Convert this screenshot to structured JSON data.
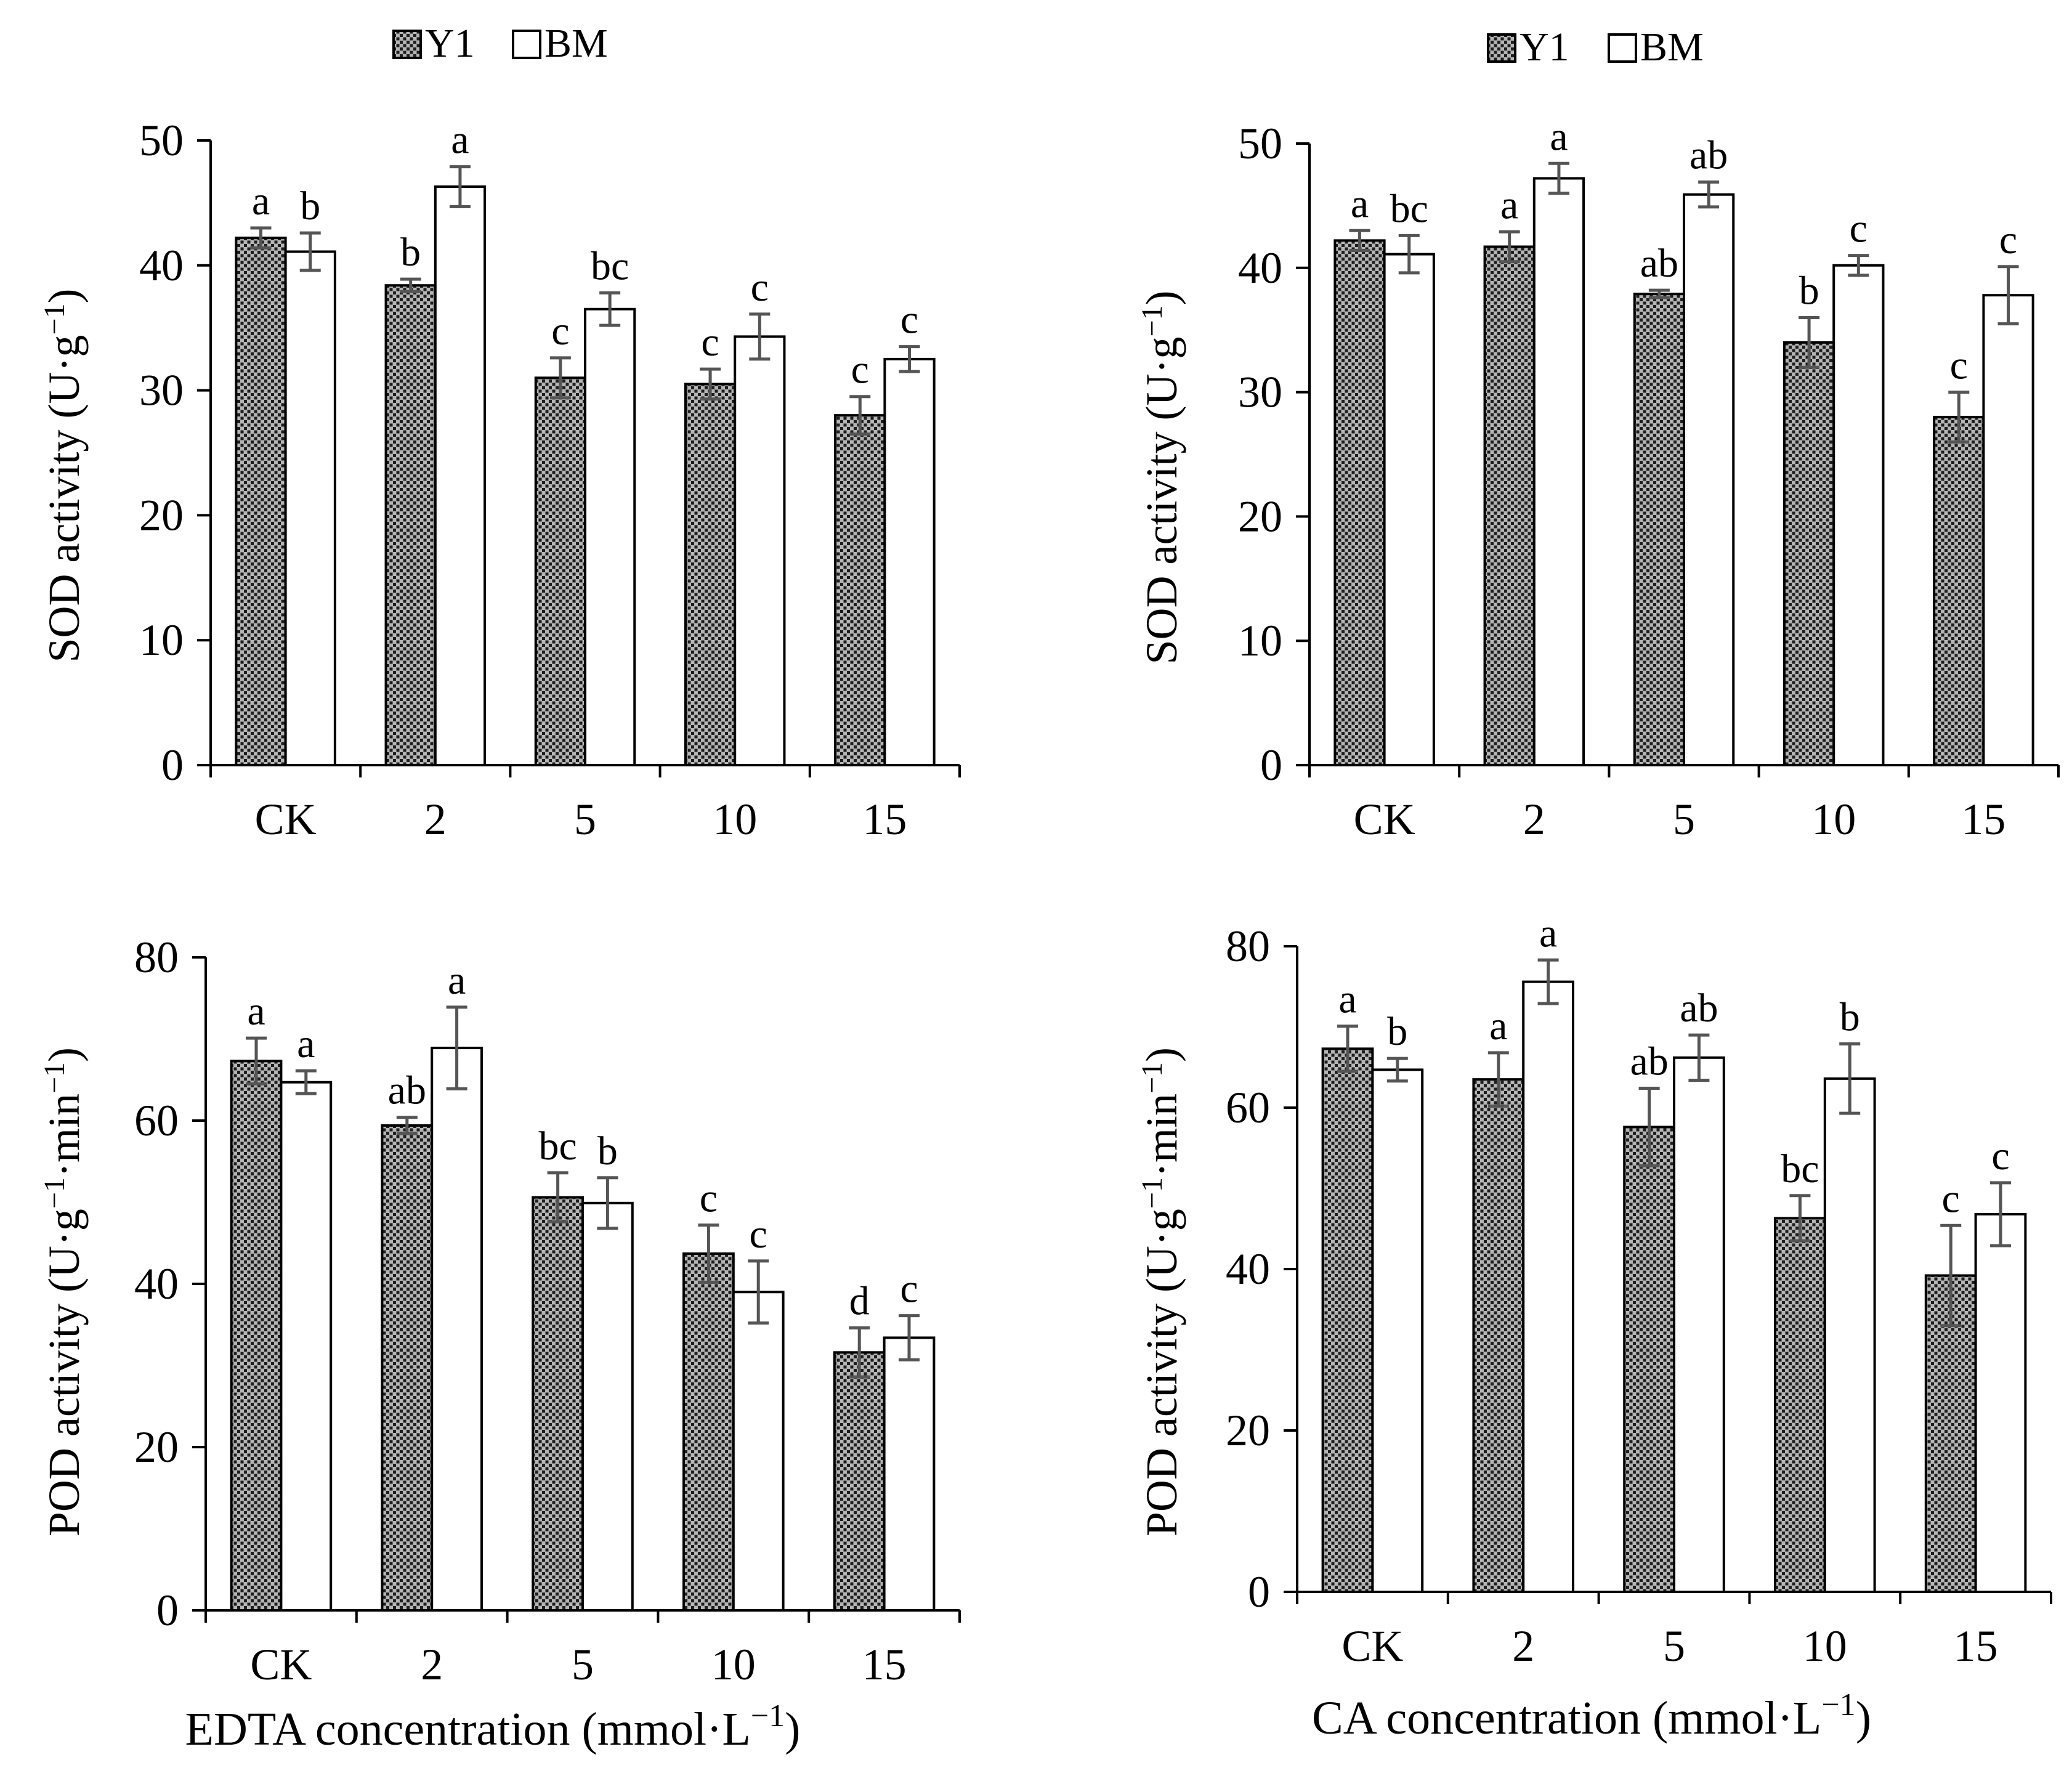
{
  "colors": {
    "y1_fill": "#8c8c8c",
    "bm_fill": "#ffffff",
    "axis": "#000000",
    "errorbar": "#555555"
  },
  "x_labels": {
    "edta": "EDTA concentration (mmol·L",
    "ca": "CA concentration (mmol·L",
    "sup_minus": "−1",
    "close": ")"
  },
  "chart_data": [
    {
      "type": "bar",
      "panel": "top-left",
      "legend": [
        "Y1",
        "BM"
      ],
      "categories": [
        "CK",
        "2",
        "5",
        "10",
        "15"
      ],
      "ylabel": {
        "main": "SOD activity (U·g",
        "sup": "−1",
        "close": ")"
      },
      "ylim": [
        0,
        50
      ],
      "yticks": [
        "0",
        "10",
        "20",
        "30",
        "40",
        "50"
      ],
      "series": [
        {
          "name": "Y1",
          "values": [
            42.2,
            38.4,
            31.0,
            30.5,
            28.0
          ],
          "errors": [
            0.8,
            0.5,
            1.6,
            1.2,
            1.5
          ],
          "letters": [
            "a",
            "b",
            "c",
            "c",
            "c"
          ]
        },
        {
          "name": "BM",
          "values": [
            41.1,
            46.3,
            36.5,
            34.3,
            32.5
          ],
          "errors": [
            1.5,
            1.6,
            1.3,
            1.8,
            1.0
          ],
          "letters": [
            "b",
            "a",
            "bc",
            "c",
            "c"
          ]
        }
      ]
    },
    {
      "type": "bar",
      "panel": "top-right",
      "legend": [
        "Y1",
        "BM"
      ],
      "categories": [
        "CK",
        "2",
        "5",
        "10",
        "15"
      ],
      "ylabel": {
        "main": "SOD activity (U·g",
        "sup": "−1",
        "close": ")"
      },
      "ylim": [
        0,
        50
      ],
      "yticks": [
        "0",
        "10",
        "20",
        "30",
        "40",
        "50"
      ],
      "series": [
        {
          "name": "Y1",
          "values": [
            42.2,
            41.7,
            37.9,
            34.0,
            28.0
          ],
          "errors": [
            0.8,
            1.2,
            0.3,
            2.0,
            2.0
          ],
          "letters": [
            "a",
            "a",
            "ab",
            "b",
            "c"
          ]
        },
        {
          "name": "BM",
          "values": [
            41.1,
            47.2,
            45.9,
            40.2,
            37.8
          ],
          "errors": [
            1.5,
            1.2,
            1.0,
            0.8,
            2.3
          ],
          "letters": [
            "bc",
            "a",
            "ab",
            "c",
            "c"
          ]
        }
      ]
    },
    {
      "type": "bar",
      "panel": "bottom-left",
      "categories": [
        "CK",
        "2",
        "5",
        "10",
        "15"
      ],
      "ylabel": {
        "main": "POD activity (U·g",
        "sup": "−1",
        "mid": "·min",
        "sup2": "−1",
        "close": ")"
      },
      "xlabel": "EDTA concentration (mmol·L−1)",
      "ylim": [
        0,
        80
      ],
      "yticks": [
        "0",
        "20",
        "40",
        "60",
        "80"
      ],
      "series": [
        {
          "name": "Y1",
          "values": [
            67.3,
            59.4,
            50.6,
            43.7,
            31.6
          ],
          "errors": [
            2.8,
            1.0,
            3.0,
            3.5,
            3.0
          ],
          "letters": [
            "a",
            "ab",
            "bc",
            "c",
            "d"
          ]
        },
        {
          "name": "BM",
          "values": [
            64.7,
            68.9,
            49.9,
            39.0,
            33.4
          ],
          "errors": [
            1.4,
            5.0,
            3.1,
            3.8,
            2.7
          ],
          "letters": [
            "a",
            "a",
            "b",
            "c",
            "c"
          ]
        }
      ]
    },
    {
      "type": "bar",
      "panel": "bottom-right",
      "categories": [
        "CK",
        "2",
        "5",
        "10",
        "15"
      ],
      "ylabel": {
        "main": "POD activity (U·g",
        "sup": "−1",
        "mid": "·min",
        "sup2": "−1",
        "close": ")"
      },
      "xlabel": "CA concentration (mmol·L−1)",
      "ylim": [
        0,
        80
      ],
      "yticks": [
        "0",
        "20",
        "40",
        "60",
        "80"
      ],
      "series": [
        {
          "name": "Y1",
          "values": [
            67.3,
            63.5,
            57.6,
            46.3,
            39.2
          ],
          "errors": [
            2.8,
            3.3,
            4.8,
            2.8,
            6.2
          ],
          "letters": [
            "a",
            "a",
            "ab",
            "bc",
            "c"
          ]
        },
        {
          "name": "BM",
          "values": [
            64.7,
            75.6,
            66.2,
            63.6,
            46.8
          ],
          "errors": [
            1.4,
            2.7,
            2.8,
            4.3,
            3.9
          ],
          "letters": [
            "b",
            "a",
            "ab",
            "b",
            "c"
          ]
        }
      ]
    }
  ]
}
